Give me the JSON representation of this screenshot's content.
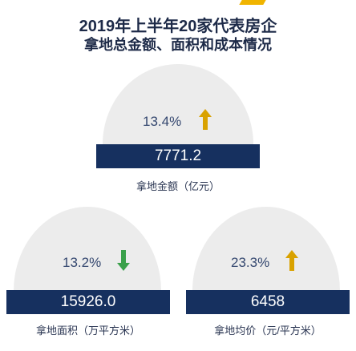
{
  "title": {
    "line1": "2019年上半年20家代表房企",
    "line2": "拿地总金额、面积和成本情况"
  },
  "colors": {
    "navy": "#16305f",
    "up_arrow": "#d9a200",
    "down_arrow": "#3aa04a",
    "dome": "#ececec",
    "accent": "#f0b400"
  },
  "metrics": {
    "amount": {
      "percent": "13.4%",
      "direction": "up",
      "value": "7771.2",
      "label": "拿地金额（亿元）"
    },
    "area": {
      "percent": "13.2%",
      "direction": "down",
      "value": "15926.0",
      "label": "拿地面积（万平方米）"
    },
    "price": {
      "percent": "23.3%",
      "direction": "up",
      "value": "6458",
      "label": "拿地均价（元/平方米）"
    }
  }
}
